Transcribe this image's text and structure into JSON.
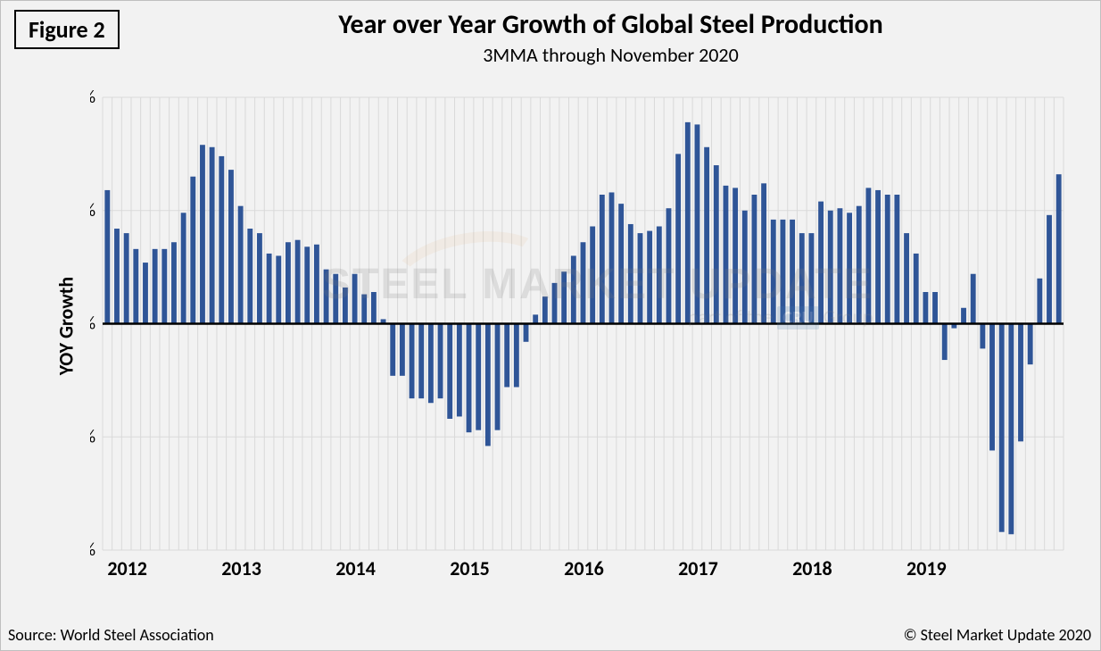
{
  "figure_label": "Figure 2",
  "title": "Year over Year Growth of Global Steel Production",
  "subtitle": "3MMA through November 2020",
  "y_axis_label": "YOY Growth",
  "source": "Source: World Steel Association",
  "copyright": "© Steel Market Update 2020",
  "watermark": {
    "main": "STEEL MARKET UPDATE",
    "sub_prefix": "part of the",
    "sub_badge": "CRU",
    "sub_suffix": "Group"
  },
  "chart": {
    "type": "bar",
    "background_color": "#f2f2f2",
    "plot_background": "#f2f2f2",
    "grid_color": "#d9d9d9",
    "zero_line_color": "#000000",
    "zero_line_width": 2.5,
    "border_color": "#bfbfbf",
    "bar_color": "#2f5597",
    "bar_width_ratio": 0.55,
    "y_axis": {
      "min": -10,
      "max": 10,
      "tick_step": 5,
      "tick_suffix": "%",
      "font_size": 20,
      "font_color": "#000000"
    },
    "x_axis": {
      "labels": [
        "2012",
        "2013",
        "2014",
        "2015",
        "2016",
        "2017",
        "2018",
        "2019"
      ],
      "label_positions": [
        0,
        12,
        24,
        36,
        48,
        60,
        72,
        84
      ],
      "font_size": 22,
      "font_weight": "bold",
      "font_color": "#000000"
    },
    "values": [
      5.9,
      4.2,
      4.0,
      3.3,
      2.7,
      3.3,
      3.3,
      3.6,
      4.9,
      6.5,
      7.9,
      7.8,
      7.4,
      6.8,
      5.2,
      4.2,
      4.0,
      3.1,
      3.0,
      3.6,
      3.7,
      3.4,
      3.5,
      2.4,
      2.2,
      1.6,
      2.2,
      1.3,
      1.4,
      0.2,
      -2.3,
      -2.3,
      -3.3,
      -3.3,
      -3.5,
      -3.3,
      -4.2,
      -4.1,
      -4.8,
      -4.7,
      -5.4,
      -4.7,
      -2.8,
      -2.8,
      -0.8,
      0.4,
      1.2,
      1.8,
      2.3,
      3.0,
      3.6,
      4.3,
      5.7,
      5.8,
      5.3,
      4.4,
      4.0,
      4.1,
      4.3,
      5.1,
      7.5,
      8.9,
      8.8,
      7.8,
      7.0,
      6.1,
      6.0,
      5.0,
      5.7,
      6.2,
      4.6,
      4.6,
      4.6,
      4.0,
      4.0,
      5.4,
      5.0,
      5.1,
      4.9,
      5.2,
      6.0,
      5.9,
      5.7,
      5.7,
      4.0,
      3.1,
      1.4,
      1.4,
      -1.6,
      -0.2,
      0.7,
      2.2,
      -1.1,
      -5.6,
      -9.2,
      -9.3,
      -5.2,
      -1.8,
      2.0,
      4.8,
      6.6
    ]
  }
}
